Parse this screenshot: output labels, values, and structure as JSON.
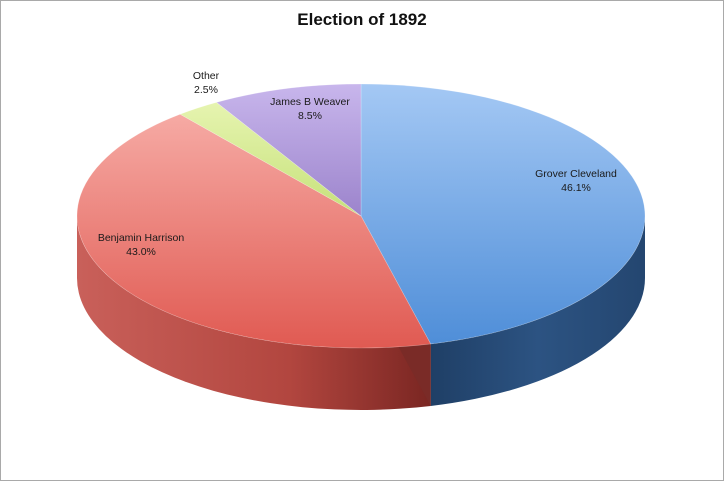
{
  "chart_data": {
    "type": "pie",
    "title": "Election of 1892",
    "slices": [
      {
        "label": "Grover Cleveland",
        "percent_label": "46.1%",
        "value": 46.1,
        "color": "#5b9ce0",
        "side_color": "#2b4f7a"
      },
      {
        "label": "Benjamin Harrison",
        "percent_label": "43.0%",
        "value": 43.0,
        "color": "#e8706a",
        "side_color": "#a8413c"
      },
      {
        "label": "Other",
        "percent_label": "2.5%",
        "value": 2.5,
        "color": "#d8ec92",
        "side_color": "#93a85a"
      },
      {
        "label": "James B Weaver",
        "percent_label": "8.5%",
        "value": 8.5,
        "color": "#b39ddb",
        "side_color": "#6e5a97"
      }
    ],
    "style": "3d",
    "legend": "none"
  }
}
